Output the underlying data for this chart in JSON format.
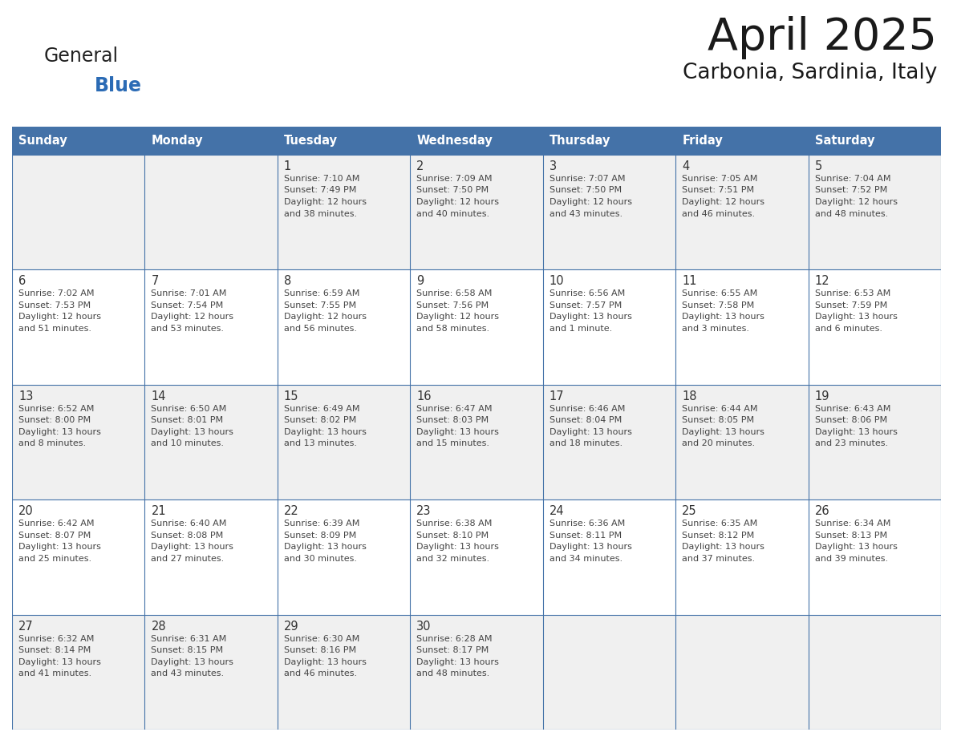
{
  "title": "April 2025",
  "subtitle": "Carbonia, Sardinia, Italy",
  "header_bg": "#4472A8",
  "header_text_color": "#FFFFFF",
  "cell_bg_odd": "#F0F0F0",
  "cell_bg_even": "#FFFFFF",
  "day_number_color": "#333333",
  "detail_text_color": "#444444",
  "grid_line_color": "#4472A8",
  "logo_general_color": "#222222",
  "logo_blue_color": "#2B6BB5",
  "days_of_week": [
    "Sunday",
    "Monday",
    "Tuesday",
    "Wednesday",
    "Thursday",
    "Friday",
    "Saturday"
  ],
  "weeks": [
    [
      {
        "day": "",
        "lines": []
      },
      {
        "day": "",
        "lines": []
      },
      {
        "day": "1",
        "lines": [
          "Sunrise: 7:10 AM",
          "Sunset: 7:49 PM",
          "Daylight: 12 hours",
          "and 38 minutes."
        ]
      },
      {
        "day": "2",
        "lines": [
          "Sunrise: 7:09 AM",
          "Sunset: 7:50 PM",
          "Daylight: 12 hours",
          "and 40 minutes."
        ]
      },
      {
        "day": "3",
        "lines": [
          "Sunrise: 7:07 AM",
          "Sunset: 7:50 PM",
          "Daylight: 12 hours",
          "and 43 minutes."
        ]
      },
      {
        "day": "4",
        "lines": [
          "Sunrise: 7:05 AM",
          "Sunset: 7:51 PM",
          "Daylight: 12 hours",
          "and 46 minutes."
        ]
      },
      {
        "day": "5",
        "lines": [
          "Sunrise: 7:04 AM",
          "Sunset: 7:52 PM",
          "Daylight: 12 hours",
          "and 48 minutes."
        ]
      }
    ],
    [
      {
        "day": "6",
        "lines": [
          "Sunrise: 7:02 AM",
          "Sunset: 7:53 PM",
          "Daylight: 12 hours",
          "and 51 minutes."
        ]
      },
      {
        "day": "7",
        "lines": [
          "Sunrise: 7:01 AM",
          "Sunset: 7:54 PM",
          "Daylight: 12 hours",
          "and 53 minutes."
        ]
      },
      {
        "day": "8",
        "lines": [
          "Sunrise: 6:59 AM",
          "Sunset: 7:55 PM",
          "Daylight: 12 hours",
          "and 56 minutes."
        ]
      },
      {
        "day": "9",
        "lines": [
          "Sunrise: 6:58 AM",
          "Sunset: 7:56 PM",
          "Daylight: 12 hours",
          "and 58 minutes."
        ]
      },
      {
        "day": "10",
        "lines": [
          "Sunrise: 6:56 AM",
          "Sunset: 7:57 PM",
          "Daylight: 13 hours",
          "and 1 minute."
        ]
      },
      {
        "day": "11",
        "lines": [
          "Sunrise: 6:55 AM",
          "Sunset: 7:58 PM",
          "Daylight: 13 hours",
          "and 3 minutes."
        ]
      },
      {
        "day": "12",
        "lines": [
          "Sunrise: 6:53 AM",
          "Sunset: 7:59 PM",
          "Daylight: 13 hours",
          "and 6 minutes."
        ]
      }
    ],
    [
      {
        "day": "13",
        "lines": [
          "Sunrise: 6:52 AM",
          "Sunset: 8:00 PM",
          "Daylight: 13 hours",
          "and 8 minutes."
        ]
      },
      {
        "day": "14",
        "lines": [
          "Sunrise: 6:50 AM",
          "Sunset: 8:01 PM",
          "Daylight: 13 hours",
          "and 10 minutes."
        ]
      },
      {
        "day": "15",
        "lines": [
          "Sunrise: 6:49 AM",
          "Sunset: 8:02 PM",
          "Daylight: 13 hours",
          "and 13 minutes."
        ]
      },
      {
        "day": "16",
        "lines": [
          "Sunrise: 6:47 AM",
          "Sunset: 8:03 PM",
          "Daylight: 13 hours",
          "and 15 minutes."
        ]
      },
      {
        "day": "17",
        "lines": [
          "Sunrise: 6:46 AM",
          "Sunset: 8:04 PM",
          "Daylight: 13 hours",
          "and 18 minutes."
        ]
      },
      {
        "day": "18",
        "lines": [
          "Sunrise: 6:44 AM",
          "Sunset: 8:05 PM",
          "Daylight: 13 hours",
          "and 20 minutes."
        ]
      },
      {
        "day": "19",
        "lines": [
          "Sunrise: 6:43 AM",
          "Sunset: 8:06 PM",
          "Daylight: 13 hours",
          "and 23 minutes."
        ]
      }
    ],
    [
      {
        "day": "20",
        "lines": [
          "Sunrise: 6:42 AM",
          "Sunset: 8:07 PM",
          "Daylight: 13 hours",
          "and 25 minutes."
        ]
      },
      {
        "day": "21",
        "lines": [
          "Sunrise: 6:40 AM",
          "Sunset: 8:08 PM",
          "Daylight: 13 hours",
          "and 27 minutes."
        ]
      },
      {
        "day": "22",
        "lines": [
          "Sunrise: 6:39 AM",
          "Sunset: 8:09 PM",
          "Daylight: 13 hours",
          "and 30 minutes."
        ]
      },
      {
        "day": "23",
        "lines": [
          "Sunrise: 6:38 AM",
          "Sunset: 8:10 PM",
          "Daylight: 13 hours",
          "and 32 minutes."
        ]
      },
      {
        "day": "24",
        "lines": [
          "Sunrise: 6:36 AM",
          "Sunset: 8:11 PM",
          "Daylight: 13 hours",
          "and 34 minutes."
        ]
      },
      {
        "day": "25",
        "lines": [
          "Sunrise: 6:35 AM",
          "Sunset: 8:12 PM",
          "Daylight: 13 hours",
          "and 37 minutes."
        ]
      },
      {
        "day": "26",
        "lines": [
          "Sunrise: 6:34 AM",
          "Sunset: 8:13 PM",
          "Daylight: 13 hours",
          "and 39 minutes."
        ]
      }
    ],
    [
      {
        "day": "27",
        "lines": [
          "Sunrise: 6:32 AM",
          "Sunset: 8:14 PM",
          "Daylight: 13 hours",
          "and 41 minutes."
        ]
      },
      {
        "day": "28",
        "lines": [
          "Sunrise: 6:31 AM",
          "Sunset: 8:15 PM",
          "Daylight: 13 hours",
          "and 43 minutes."
        ]
      },
      {
        "day": "29",
        "lines": [
          "Sunrise: 6:30 AM",
          "Sunset: 8:16 PM",
          "Daylight: 13 hours",
          "and 46 minutes."
        ]
      },
      {
        "day": "30",
        "lines": [
          "Sunrise: 6:28 AM",
          "Sunset: 8:17 PM",
          "Daylight: 13 hours",
          "and 48 minutes."
        ]
      },
      {
        "day": "",
        "lines": []
      },
      {
        "day": "",
        "lines": []
      },
      {
        "day": "",
        "lines": []
      }
    ]
  ]
}
